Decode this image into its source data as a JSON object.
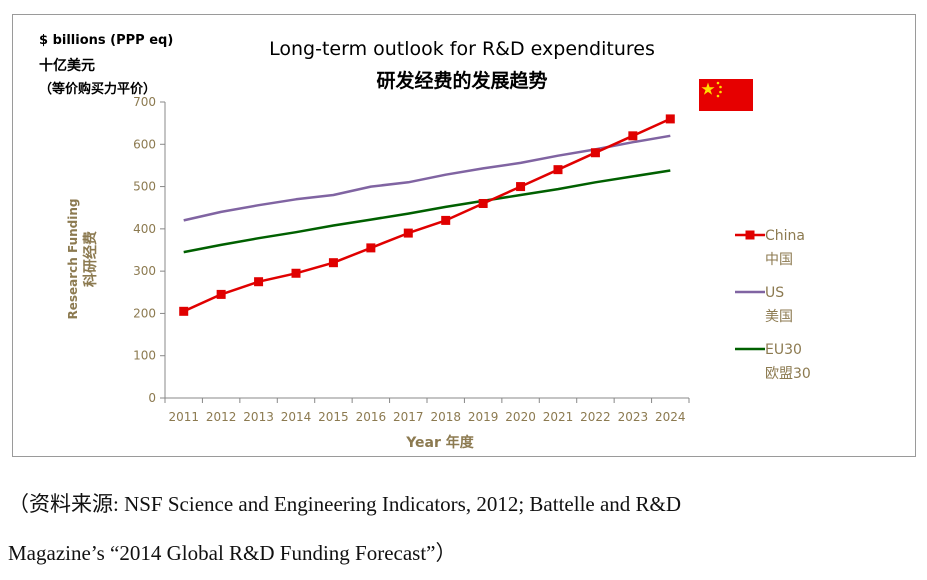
{
  "chart_data": {
    "type": "line",
    "title": "Long-term outlook for R&D expenditures",
    "subtitle": "研发经费的发展趋势",
    "unit_label": "$ billions (PPP eq)",
    "unit_label_zh": "十亿美元",
    "unit_label_zh_note": "（等价购买力平价）",
    "xlabel": "Year  年度",
    "ylabel": "Research Funding",
    "ylabel_zh": "科研经费",
    "categories": [
      "2011",
      "2012",
      "2013",
      "2014",
      "2015",
      "2016",
      "2017",
      "2018",
      "2019",
      "2020",
      "2021",
      "2022",
      "2023",
      "2024"
    ],
    "ylim": [
      0,
      700
    ],
    "yticks": [
      0,
      100,
      200,
      300,
      400,
      500,
      600,
      700
    ],
    "grid": false,
    "legend_position": "right",
    "series": [
      {
        "name": "China",
        "name_zh": "中国",
        "color": "#e00000",
        "marker": "square",
        "values": [
          205,
          245,
          275,
          295,
          320,
          355,
          390,
          420,
          460,
          500,
          540,
          580,
          620,
          660
        ]
      },
      {
        "name": "US",
        "name_zh": "美国",
        "color": "#8064a2",
        "marker": "none",
        "values": [
          420,
          440,
          456,
          470,
          480,
          500,
          510,
          528,
          543,
          556,
          573,
          588,
          605,
          620
        ]
      },
      {
        "name": "EU30",
        "name_zh": "欧盟30",
        "color": "#006000",
        "marker": "none",
        "values": [
          345,
          362,
          378,
          392,
          408,
          422,
          436,
          452,
          466,
          480,
          494,
          510,
          524,
          538
        ]
      }
    ],
    "flag": "china-flag"
  },
  "source": {
    "line1": "（资料来源: NSF Science and Engineering Indicators, 2012; Battelle and R&D",
    "line2": "Magazine’s “2014 Global R&D Funding Forecast”）"
  }
}
